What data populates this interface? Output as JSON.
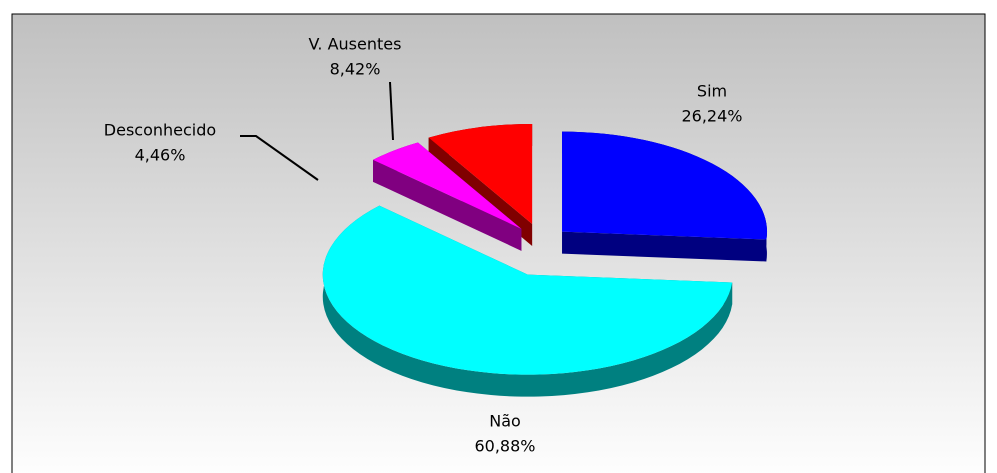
{
  "chart_data": {
    "type": "pie3d",
    "categories": [
      "Sim",
      "Não",
      "Desconhecido",
      "V. Ausentes"
    ],
    "values": [
      26.24,
      60.88,
      4.46,
      8.42
    ],
    "value_labels": [
      "26,24%",
      "60,88%",
      "4,46%",
      "8,42%"
    ],
    "colors": [
      "#0000ff",
      "#00ffff",
      "#ff00ff",
      "#ff0000"
    ]
  }
}
